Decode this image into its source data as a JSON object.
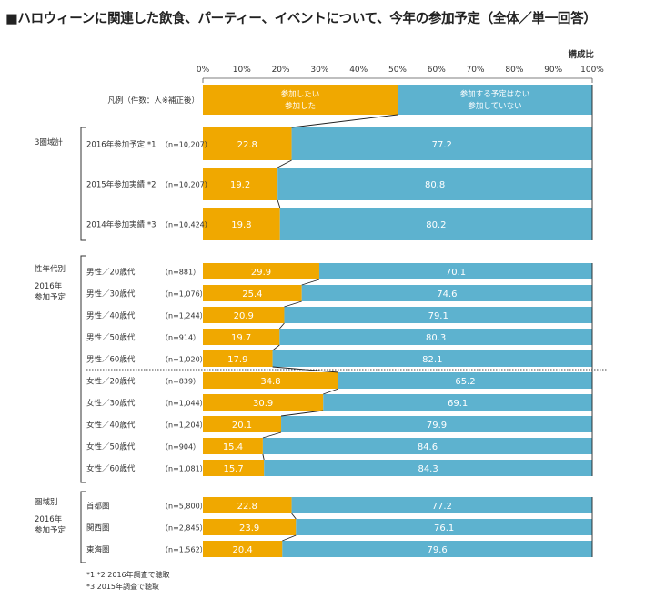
{
  "title": "■ハロウィーンに関連した飲食、パーティー、イベントについて、今年の参加予定（全体／単一回答）",
  "unit_label": "構成比",
  "legend": {
    "row_label": "凡例（件数：人※補正後）",
    "series1_lines": [
      "参加したい",
      "参加した"
    ],
    "series2_lines": [
      "参加する予定はない",
      "参加していない"
    ]
  },
  "colors": {
    "series1": "#F0A800",
    "series2": "#5DB2CF"
  },
  "groups": [
    {
      "lines": [
        "3圏域計"
      ]
    },
    {
      "lines": [
        "性年代別",
        "2016年",
        "参加予定"
      ]
    },
    {
      "lines": [
        "圏域別",
        "2016年",
        "参加予定"
      ]
    }
  ],
  "notes": [
    "*1 *2 2016年調査で聴取",
    "*3 2015年調査で聴取"
  ],
  "chart_data": {
    "type": "bar",
    "orientation": "horizontal",
    "stacked": true,
    "xlim": [
      0,
      100
    ],
    "ticks": [
      "0%",
      "10%",
      "20%",
      "30%",
      "40%",
      "50%",
      "60%",
      "70%",
      "80%",
      "90%",
      "100%"
    ],
    "categories": [
      "2016年参加予定 *1",
      "2015年参加実績 *2",
      "2014年参加実績 *3",
      "男性／20歳代",
      "男性／30歳代",
      "男性／40歳代",
      "男性／50歳代",
      "男性／60歳代",
      "女性／20歳代",
      "女性／30歳代",
      "女性／40歳代",
      "女性／50歳代",
      "女性／60歳代",
      "首都圏",
      "関西圏",
      "東海圏"
    ],
    "n": [
      "（n=10,207）",
      "（n=10,207）",
      "（n=10,424）",
      "（n=881）",
      "（n=1,076）",
      "（n=1,244）",
      "（n=914）",
      "（n=1,020）",
      "（n=839）",
      "（n=1,044）",
      "（n=1,204）",
      "（n=904）",
      "（n=1,081）",
      "（n=5,800）",
      "（n=2,845）",
      "（n=1,562）"
    ],
    "series": [
      {
        "values": [
          22.8,
          19.2,
          19.8,
          29.9,
          25.4,
          20.9,
          19.7,
          17.9,
          34.8,
          30.9,
          20.1,
          15.4,
          15.7,
          22.8,
          23.9,
          20.4
        ]
      },
      {
        "values": [
          77.2,
          80.8,
          80.2,
          70.1,
          74.6,
          79.1,
          80.3,
          82.1,
          65.2,
          69.1,
          79.9,
          84.6,
          84.3,
          77.2,
          76.1,
          79.6
        ]
      }
    ]
  }
}
